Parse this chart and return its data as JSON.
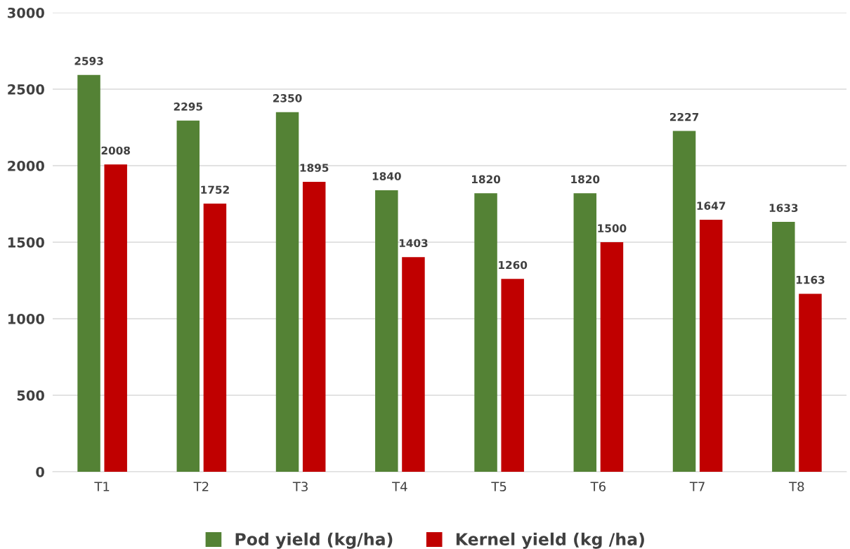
{
  "chart_data": {
    "type": "bar",
    "categories": [
      "T1",
      "T2",
      "T3",
      "T4",
      "T5",
      "T6",
      "T7",
      "T8"
    ],
    "series": [
      {
        "name": "Pod yield (kg/ha)",
        "color": "#548235",
        "values": [
          2593,
          2295,
          2350,
          1840,
          1820,
          1820,
          2227,
          1633
        ]
      },
      {
        "name": "Kernel yield (kg /ha)",
        "color": "#c00000",
        "values": [
          2008,
          1752,
          1895,
          1403,
          1260,
          1500,
          1647,
          1163
        ]
      }
    ],
    "ylim": [
      0,
      3000
    ],
    "yticks": [
      0,
      500,
      1000,
      1500,
      2000,
      2500,
      3000
    ],
    "grid": "y",
    "legend": "bottom",
    "data_labels": true
  }
}
